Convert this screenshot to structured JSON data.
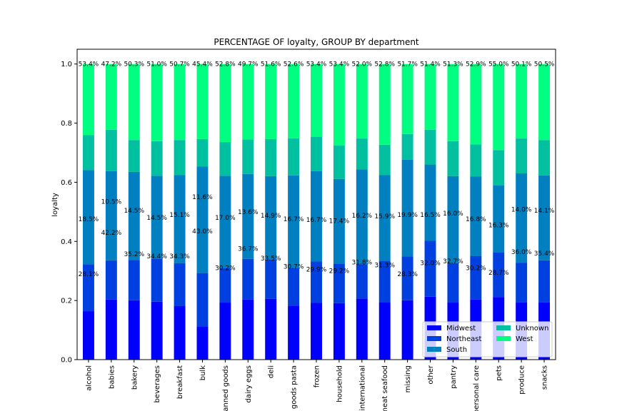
{
  "chart_data": {
    "type": "bar",
    "stacked": true,
    "title": "PERCENTAGE OF loyalty, GROUP BY department",
    "xlabel": "",
    "ylabel": "loyalty",
    "ylim": [
      0,
      1.05
    ],
    "yticks": [
      "0.0",
      "0.2",
      "0.4",
      "0.6",
      "0.8",
      "1.0"
    ],
    "grid": false,
    "legend_position": "lower-right",
    "categories": [
      "alcohol",
      "babies",
      "bakery",
      "beverages",
      "breakfast",
      "bulk",
      "canned goods",
      "dairy eggs",
      "deli",
      "dry goods pasta",
      "frozen",
      "household",
      "international",
      "meat seafood",
      "missing",
      "other",
      "pantry",
      "personal care",
      "pets",
      "produce",
      "snacks"
    ],
    "series": [
      {
        "name": "Midwest",
        "color": "#0000ff",
        "values": [
          0.164,
          0.203,
          0.201,
          0.196,
          0.181,
          0.113,
          0.193,
          0.203,
          0.206,
          0.183,
          0.192,
          0.191,
          0.207,
          0.195,
          0.201,
          0.213,
          0.193,
          0.203,
          0.212,
          0.194,
          0.194
        ]
      },
      {
        "name": "Northeast",
        "color": "#0040e0",
        "values": [
          0.159,
          0.133,
          0.136,
          0.146,
          0.145,
          0.18,
          0.117,
          0.138,
          0.132,
          0.126,
          0.14,
          0.134,
          0.116,
          0.14,
          0.148,
          0.189,
          0.133,
          0.147,
          0.151,
          0.134,
          0.142
        ]
      },
      {
        "name": "South",
        "color": "#0080c0",
        "values": [
          0.318,
          0.302,
          0.298,
          0.28,
          0.298,
          0.36,
          0.312,
          0.287,
          0.283,
          0.314,
          0.306,
          0.286,
          0.321,
          0.289,
          0.327,
          0.258,
          0.295,
          0.27,
          0.226,
          0.302,
          0.287
        ]
      },
      {
        "name": "Unknown",
        "color": "#00c0a0",
        "values": [
          0.119,
          0.14,
          0.108,
          0.117,
          0.119,
          0.093,
          0.114,
          0.117,
          0.125,
          0.126,
          0.116,
          0.114,
          0.104,
          0.103,
          0.087,
          0.118,
          0.118,
          0.108,
          0.12,
          0.118,
          0.12
        ]
      },
      {
        "name": "West",
        "color": "#00ff80",
        "values": [
          0.24,
          0.222,
          0.257,
          0.261,
          0.257,
          0.254,
          0.264,
          0.255,
          0.254,
          0.251,
          0.246,
          0.275,
          0.252,
          0.273,
          0.237,
          0.222,
          0.261,
          0.272,
          0.291,
          0.252,
          0.257
        ]
      }
    ],
    "data_labels": {
      "top": [
        "53.4%",
        "47.2%",
        "50.3%",
        "51.0%",
        "50.7%",
        "45.4%",
        "52.8%",
        "49.7%",
        "51.6%",
        "52.6%",
        "53.4%",
        "53.4%",
        "52.0%",
        "52.8%",
        "51.7%",
        "51.4%",
        "51.3%",
        "52.9%",
        "55.0%",
        "50.1%",
        "50.5%"
      ],
      "upper": [
        "18.5%",
        "10.5%",
        "14.5%",
        "14.5%",
        "15.1%",
        "11.6%",
        "17.0%",
        "13.6%",
        "14.9%",
        "16.7%",
        "16.7%",
        "17.4%",
        "16.2%",
        "15.9%",
        "19.9%",
        "16.5%",
        "16.0%",
        "16.8%",
        "16.3%",
        "14.0%",
        "14.1%"
      ],
      "middle": [
        "",
        "42.2%",
        "",
        "",
        "",
        "43.0%",
        "",
        "",
        "",
        "",
        "",
        "",
        "",
        "",
        "",
        "",
        "",
        "",
        "",
        "",
        ""
      ],
      "lower": [
        "28.1%",
        "",
        "35.2%",
        "34.4%",
        "34.3%",
        "",
        "30.2%",
        "36.7%",
        "33.5%",
        "30.7%",
        "29.9%",
        "29.2%",
        "31.8%",
        "31.3%",
        "28.3%",
        "32.0%",
        "32.7%",
        "30.2%",
        "28.7%",
        "36.0%",
        "35.4%"
      ]
    },
    "label_positions": {
      "top": [
        1.0,
        1.0,
        1.0,
        1.0,
        1.0,
        1.0,
        1.0,
        1.0,
        1.0,
        1.0,
        1.0,
        1.0,
        1.0,
        1.0,
        1.0,
        1.0,
        1.0,
        1.0,
        1.0,
        1.0,
        1.0
      ],
      "upper": [
        0.475,
        0.535,
        0.505,
        0.48,
        0.49,
        0.55,
        0.48,
        0.5,
        0.487,
        0.475,
        0.473,
        0.47,
        0.488,
        0.485,
        0.49,
        0.49,
        0.495,
        0.475,
        0.455,
        0.508,
        0.505
      ],
      "middle": [
        0,
        0.43,
        0,
        0,
        0,
        0.435,
        0,
        0,
        0,
        0,
        0,
        0,
        0,
        0,
        0,
        0,
        0,
        0,
        0,
        0,
        0
      ],
      "lower": [
        0.29,
        0,
        0.357,
        0.35,
        0.35,
        0,
        0.31,
        0.375,
        0.343,
        0.315,
        0.305,
        0.3,
        0.33,
        0.32,
        0.29,
        0.327,
        0.333,
        0.31,
        0.295,
        0.365,
        0.36
      ]
    }
  }
}
